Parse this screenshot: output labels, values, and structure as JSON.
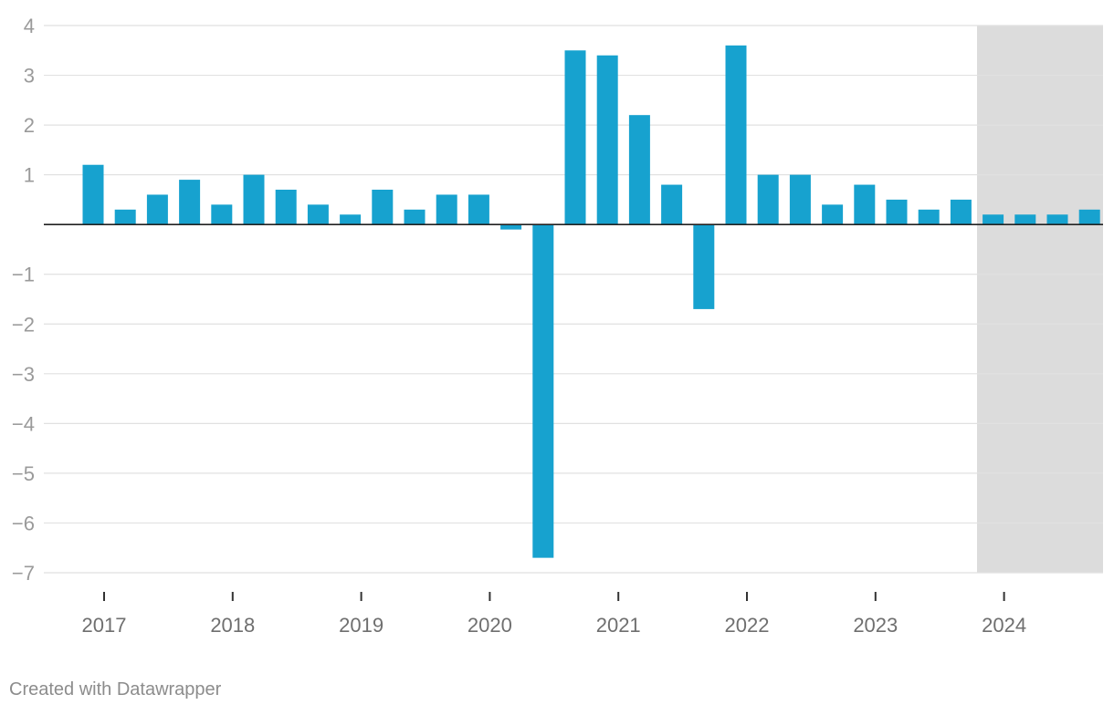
{
  "chart_data": {
    "type": "bar",
    "categories": [
      "2017 Q1",
      "2017 Q2",
      "2017 Q3",
      "2017 Q4",
      "2018 Q1",
      "2018 Q2",
      "2018 Q3",
      "2018 Q4",
      "2019 Q1",
      "2019 Q2",
      "2019 Q3",
      "2019 Q4",
      "2020 Q1",
      "2020 Q2",
      "2020 Q3",
      "2020 Q4",
      "2021 Q1",
      "2021 Q2",
      "2021 Q3",
      "2021 Q4",
      "2022 Q1",
      "2022 Q2",
      "2022 Q3",
      "2022 Q4",
      "2023 Q1",
      "2023 Q2",
      "2023 Q3",
      "2023 Q4",
      "2024 Q1",
      "2024 Q2",
      "2024 Q3",
      "2024 Q4"
    ],
    "values": [
      1.2,
      0.3,
      0.6,
      0.9,
      0.4,
      1.0,
      0.7,
      0.4,
      0.2,
      0.7,
      0.3,
      0.6,
      0.6,
      -0.1,
      -6.7,
      3.5,
      3.4,
      2.2,
      0.8,
      -1.7,
      3.6,
      1.0,
      1.0,
      0.4,
      0.8,
      0.5,
      0.3,
      0.5,
      0.2,
      0.2,
      0.2,
      0.3
    ],
    "ylim": [
      -7,
      4
    ],
    "y_ticks": [
      "4",
      "3",
      "2",
      "1",
      "−1",
      "−2",
      "−3",
      "−4",
      "−5",
      "−6",
      "−7"
    ],
    "y_tick_values": [
      4,
      3,
      2,
      1,
      -1,
      -2,
      -3,
      -4,
      -5,
      -6,
      -7
    ],
    "x_tick_labels": [
      "2017",
      "2018",
      "2019",
      "2020",
      "2021",
      "2022",
      "2023",
      "2024"
    ],
    "bar_color": "#17a2cf",
    "shaded_region": {
      "from_category": "2024 Q1",
      "to_category": "2024 Q4",
      "color": "#dcdcdc"
    },
    "grid": true,
    "title": "",
    "xlabel": "",
    "ylabel": ""
  },
  "footer": {
    "credit": "Created with Datawrapper"
  }
}
